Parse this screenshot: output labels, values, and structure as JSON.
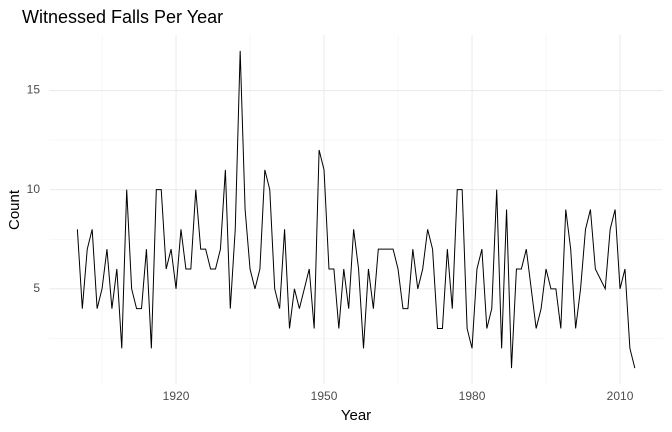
{
  "chart_data": {
    "type": "line",
    "title": "Witnessed Falls Per Year",
    "x_label": "Year",
    "y_label": "Count",
    "x": [
      1900,
      1901,
      1902,
      1903,
      1904,
      1905,
      1906,
      1907,
      1908,
      1909,
      1910,
      1911,
      1912,
      1913,
      1914,
      1915,
      1916,
      1917,
      1918,
      1919,
      1920,
      1921,
      1922,
      1923,
      1924,
      1925,
      1926,
      1927,
      1928,
      1929,
      1930,
      1931,
      1932,
      1933,
      1934,
      1935,
      1936,
      1937,
      1938,
      1939,
      1940,
      1941,
      1942,
      1943,
      1944,
      1945,
      1946,
      1947,
      1948,
      1949,
      1950,
      1951,
      1952,
      1953,
      1954,
      1955,
      1956,
      1957,
      1958,
      1959,
      1960,
      1961,
      1962,
      1963,
      1964,
      1965,
      1966,
      1967,
      1968,
      1969,
      1970,
      1971,
      1972,
      1973,
      1974,
      1975,
      1976,
      1977,
      1978,
      1979,
      1980,
      1981,
      1982,
      1983,
      1984,
      1985,
      1986,
      1987,
      1988,
      1989,
      1990,
      1991,
      1992,
      1993,
      1994,
      1995,
      1996,
      1997,
      1998,
      1999,
      2000,
      2001,
      2002,
      2003,
      2004,
      2005,
      2006,
      2007,
      2008,
      2009,
      2010,
      2011,
      2012,
      2013
    ],
    "series": [
      {
        "name": "Count",
        "color": "#000000",
        "values": [
          8,
          4,
          7,
          8,
          4,
          5,
          7,
          4,
          6,
          2,
          10,
          5,
          4,
          4,
          7,
          2,
          10,
          10,
          6,
          7,
          5,
          8,
          6,
          6,
          10,
          7,
          7,
          6,
          6,
          7,
          11,
          4,
          8,
          17,
          9,
          6,
          5,
          6,
          11,
          10,
          5,
          4,
          8,
          3,
          5,
          4,
          5,
          6,
          3,
          12,
          11,
          6,
          6,
          3,
          6,
          4,
          8,
          6,
          2,
          6,
          4,
          7,
          7,
          7,
          7,
          6,
          4,
          4,
          7,
          5,
          6,
          8,
          7,
          3,
          3,
          7,
          4,
          10,
          10,
          3,
          2,
          6,
          7,
          3,
          4,
          10,
          2,
          9,
          1,
          6,
          6,
          7,
          5,
          3,
          4,
          6,
          5,
          5,
          3,
          9,
          7,
          3,
          5,
          8,
          9,
          6,
          5.5,
          5,
          8,
          9,
          5,
          6,
          2,
          1
        ]
      }
    ],
    "xlim": [
      1894.35,
      2018.65
    ],
    "ylim": [
      0.2,
      17.8
    ],
    "xticks": [
      1920,
      1950,
      1980,
      2010
    ],
    "yticks": [
      5,
      10,
      15
    ],
    "xminor": [
      1905,
      1935,
      1965,
      1995
    ],
    "yminor": [
      2.5,
      7.5,
      12.5
    ],
    "grid": true
  }
}
